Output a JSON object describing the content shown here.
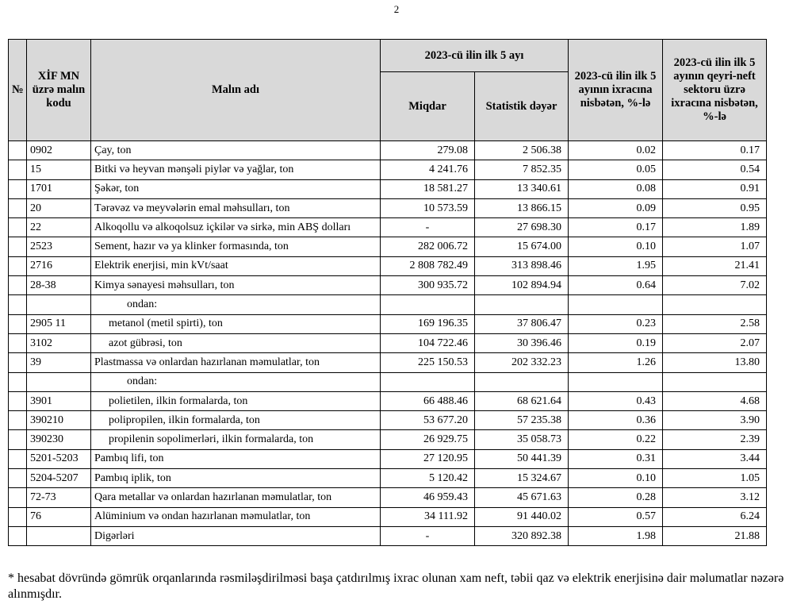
{
  "page_number": "2",
  "header": {
    "no": "№",
    "code": "XİF MN üzrə malın kodu",
    "name": "Malın adı",
    "period": "2023-cü ilin ilk 5 ayı",
    "quantity": "Miqdar",
    "value": "Statistik dəyər",
    "share_total": "2023-cü ilin ilk 5 ayının ixracına nisbətən, %-lə",
    "share_nonoil": "2023-cü ilin  ilk 5 ayının qeyri-neft sektoru üzrə ixracına nisbətən, %-lə"
  },
  "rows": [
    {
      "no": "",
      "code": "0902",
      "name": "Çay, ton",
      "indent": 0,
      "quantity": "279.08",
      "value": "2 506.38",
      "share_total": "0.02",
      "share_nonoil": "0.17"
    },
    {
      "no": "",
      "code": "15",
      "name": "Bitki və heyvan mənşəli piylər və yağlar, ton",
      "indent": 0,
      "quantity": "4 241.76",
      "value": "7 852.35",
      "share_total": "0.05",
      "share_nonoil": "0.54"
    },
    {
      "no": "",
      "code": "1701",
      "name": "Şəkər, ton",
      "indent": 0,
      "quantity": "18 581.27",
      "value": "13 340.61",
      "share_total": "0.08",
      "share_nonoil": "0.91"
    },
    {
      "no": "",
      "code": "20",
      "name": "Tərəvəz və meyvələrin emal məhsulları, ton",
      "indent": 0,
      "quantity": "10 573.59",
      "value": "13 866.15",
      "share_total": "0.09",
      "share_nonoil": "0.95"
    },
    {
      "no": "",
      "code": "22",
      "name": "Alkoqollu və alkoqolsuz içkilər və sirkə, min ABŞ dolları",
      "indent": 0,
      "quantity": "-",
      "value": "27 698.30",
      "share_total": "0.17",
      "share_nonoil": "1.89"
    },
    {
      "no": "",
      "code": "2523",
      "name": "Sement, hazır və ya klinker formasında, ton",
      "indent": 0,
      "quantity": "282 006.72",
      "value": "15 674.00",
      "share_total": "0.10",
      "share_nonoil": "1.07"
    },
    {
      "no": "",
      "code": "2716",
      "name": "Elektrik enerjisi, min kVt/saat",
      "indent": 0,
      "quantity": "2 808 782.49",
      "value": "313 898.46",
      "share_total": "1.95",
      "share_nonoil": "21.41"
    },
    {
      "no": "",
      "code": "28-38",
      "name": "Kimya sənayesi məhsulları, ton",
      "indent": 0,
      "quantity": "300 935.72",
      "value": "102 894.94",
      "share_total": "0.64",
      "share_nonoil": "7.02"
    },
    {
      "no": "",
      "code": "",
      "name": "ondan:",
      "indent": 2,
      "quantity": "",
      "value": "",
      "share_total": "",
      "share_nonoil": ""
    },
    {
      "no": "",
      "code": "2905 11",
      "name": "metanol (metil spirti), ton",
      "indent": 1,
      "quantity": "169 196.35",
      "value": "37 806.47",
      "share_total": "0.23",
      "share_nonoil": "2.58"
    },
    {
      "no": "",
      "code": "3102",
      "name": "azot gübrəsi, ton",
      "indent": 1,
      "quantity": "104 722.46",
      "value": "30 396.46",
      "share_total": "0.19",
      "share_nonoil": "2.07"
    },
    {
      "no": "",
      "code": "39",
      "name": "Plastmassa və onlardan hazırlanan məmulatlar, ton",
      "indent": 0,
      "quantity": "225 150.53",
      "value": "202 332.23",
      "share_total": "1.26",
      "share_nonoil": "13.80"
    },
    {
      "no": "",
      "code": "",
      "name": "ondan:",
      "indent": 2,
      "quantity": "",
      "value": "",
      "share_total": "",
      "share_nonoil": ""
    },
    {
      "no": "",
      "code": "3901",
      "name": "polietilen, ilkin formalarda, ton",
      "indent": 1,
      "quantity": "66 488.46",
      "value": "68 621.64",
      "share_total": "0.43",
      "share_nonoil": "4.68"
    },
    {
      "no": "",
      "code": "390210",
      "name": "polipropilen, ilkin formalarda, ton",
      "indent": 1,
      "quantity": "53 677.20",
      "value": "57 235.38",
      "share_total": "0.36",
      "share_nonoil": "3.90"
    },
    {
      "no": "",
      "code": "390230",
      "name": "propilenin sopolimerləri, ilkin formalarda, ton",
      "indent": 1,
      "quantity": "26 929.75",
      "value": "35 058.73",
      "share_total": "0.22",
      "share_nonoil": "2.39"
    },
    {
      "no": "",
      "code": "5201-5203",
      "name": "Pambıq lifi, ton",
      "indent": 0,
      "quantity": "27 120.95",
      "value": "50 441.39",
      "share_total": "0.31",
      "share_nonoil": "3.44"
    },
    {
      "no": "",
      "code": "5204-5207",
      "name": "Pambıq iplik, ton",
      "indent": 0,
      "quantity": "5 120.42",
      "value": "15 324.67",
      "share_total": "0.10",
      "share_nonoil": "1.05"
    },
    {
      "no": "",
      "code": "72-73",
      "name": "Qara metallar və onlardan hazırlanan məmulatlar, ton",
      "indent": 0,
      "quantity": "46 959.43",
      "value": "45 671.63",
      "share_total": "0.28",
      "share_nonoil": "3.12"
    },
    {
      "no": "",
      "code": "76",
      "name": "Alüminium və ondan hazırlanan məmulatlar, ton",
      "indent": 0,
      "quantity": "34 111.92",
      "value": "91 440.02",
      "share_total": "0.57",
      "share_nonoil": "6.24"
    },
    {
      "no": "",
      "code": "",
      "name": "Digərləri",
      "indent": 0,
      "quantity": "-",
      "value": "320 892.38",
      "share_total": "1.98",
      "share_nonoil": "21.88"
    }
  ],
  "footnote": "* hesabat dövründə gömrük orqanlarında rəsmiləşdirilməsi başa çatdırılmış ixrac olunan xam neft, təbii qaz və elektrik enerjisinə dair məlumatlar nəzərə alınmışdır.",
  "colors": {
    "header_bg": "#d9d9d9",
    "border": "#000000"
  }
}
